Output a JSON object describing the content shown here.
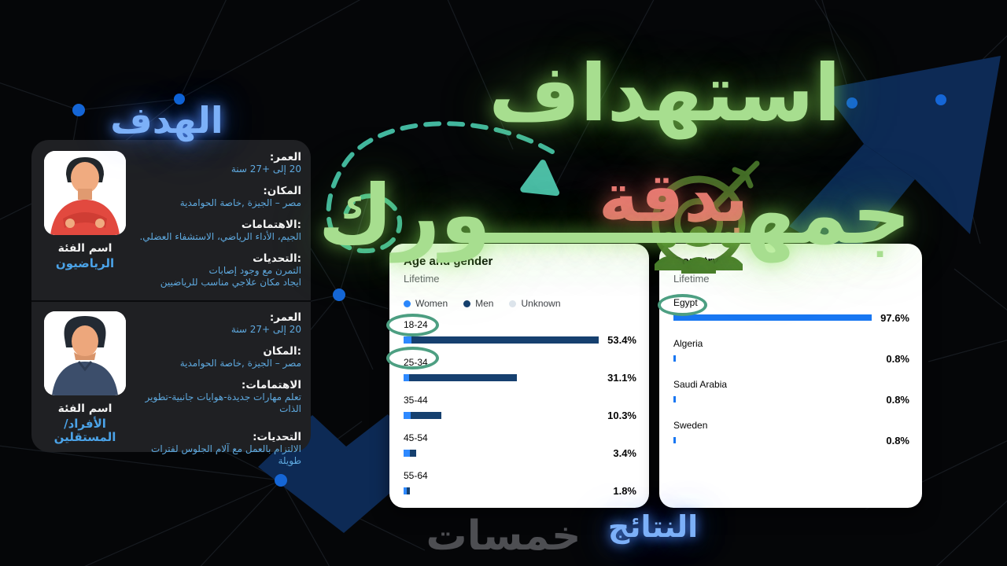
{
  "titles": {
    "main_top": "استهداف",
    "main_accent": "بدقة",
    "main_bottom": "جمهـــــــــورك",
    "goal_label": "الهدف",
    "results_label": "النتائج",
    "watermark": "خمسات"
  },
  "personas": [
    {
      "category_label": "اسم الفئة",
      "category_name": "الرياضيون",
      "fields": [
        {
          "label": "العمر:",
          "lines": [
            "20 إلى +27 سنة"
          ]
        },
        {
          "label": "المكان:",
          "lines": [
            "مصر – الجيزة ,خاصة الحوامدية"
          ]
        },
        {
          "label": ":الاهتمامات",
          "lines": [
            "الجيم، الأداء الرياضي، الاستشفاء العضلي."
          ]
        },
        {
          "label": ":التحديات",
          "lines": [
            "التمرن مع وجود إصابات",
            "ايجاد مكان علاجي مناسب للرياضيين"
          ]
        }
      ]
    },
    {
      "category_label": "اسم الفئة",
      "category_name": "الأفراد/المستقلين",
      "fields": [
        {
          "label": "العمر:",
          "lines": [
            "20 إلى +27 سنة"
          ]
        },
        {
          "label": ":المكان",
          "lines": [
            "مصر – الجيزة ,خاصة الحوامدية"
          ]
        },
        {
          "label": "الاهتمامات:",
          "lines": [
            "تعلم مهارات جديدة-هوايات جانبية-تطوير الذات"
          ]
        },
        {
          "label": "التحديات:",
          "lines": [
            "الالتزام بالعمل مع آلام الجلوس لفترات طويلة"
          ]
        }
      ]
    }
  ],
  "chart_data": [
    {
      "type": "bar",
      "orientation": "horizontal",
      "title": "Age and gender",
      "subtitle": "Lifetime",
      "legend": [
        {
          "label": "Women",
          "color": "#2e89ff"
        },
        {
          "label": "Men",
          "color": "#16406f"
        },
        {
          "label": "Unknown",
          "color": "#dde4ec"
        }
      ],
      "categories": [
        "18-24",
        "25-34",
        "35-44",
        "45-54",
        "55-64"
      ],
      "values": [
        53.4,
        31.1,
        10.3,
        3.4,
        1.8
      ],
      "value_labels": [
        "53.4%",
        "31.1%",
        "10.3%",
        "3.4%",
        "1.8%"
      ],
      "series": [
        {
          "name": "Women",
          "values": [
            2.2,
            1.5,
            1.9,
            1.7,
            0.8
          ]
        },
        {
          "name": "Men",
          "values": [
            51.2,
            29.6,
            8.4,
            1.7,
            1.0
          ]
        }
      ],
      "xlim": [
        0,
        53.4
      ],
      "grid": false,
      "legend_position": "top",
      "highlighted_categories": [
        "18-24",
        "25-34"
      ]
    },
    {
      "type": "bar",
      "orientation": "horizontal",
      "title": "Country",
      "subtitle": "Lifetime",
      "categories": [
        "Egypt",
        "Algeria",
        "Saudi Arabia",
        "Sweden"
      ],
      "values": [
        97.6,
        0.8,
        0.8,
        0.8
      ],
      "value_labels": [
        "97.6%",
        "0.8%",
        "0.8%",
        "0.8%"
      ],
      "bar_color": "#1877f2",
      "xlim": [
        0,
        97.6
      ],
      "grid": false,
      "highlighted_categories": [
        "Egypt"
      ]
    }
  ],
  "colors": {
    "background": "#050608",
    "accent_green": "#a7de8f",
    "accent_red": "#e97a74",
    "accent_teal": "#4cbda6",
    "glow_blue": "#7cb0f8",
    "node_blue": "#1566d6",
    "navy_shape": "#0d2a55",
    "persona_card_bg": "#1f2023",
    "persona_value_blue": "#5ea9df",
    "highlight_ring": "#4d9f82",
    "women_bar": "#2e89ff",
    "men_bar": "#16406f",
    "country_bar": "#1877f2"
  }
}
